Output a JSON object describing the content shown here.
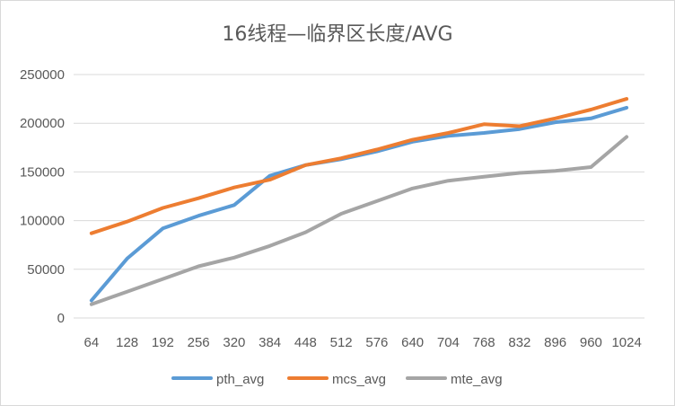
{
  "chart_data": {
    "type": "line",
    "title": "16线程—临界区长度/AVG",
    "xlabel": "",
    "ylabel": "",
    "categories": [
      "64",
      "128",
      "192",
      "256",
      "320",
      "384",
      "448",
      "512",
      "576",
      "640",
      "704",
      "768",
      "832",
      "896",
      "960",
      "1024"
    ],
    "ylim": [
      0,
      250000
    ],
    "yticks": [
      "0",
      "50000",
      "100000",
      "150000",
      "200000",
      "250000"
    ],
    "grid": "horizontal",
    "legend": "bottom",
    "series": [
      {
        "name": "pth_avg",
        "color": "#5b9bd5",
        "values": [
          18000,
          61000,
          92000,
          105000,
          116000,
          146000,
          157000,
          163000,
          171000,
          181000,
          187000,
          190000,
          194000,
          201000,
          205000,
          216000
        ]
      },
      {
        "name": "mcs_avg",
        "color": "#ed7d31",
        "values": [
          87000,
          99000,
          113000,
          123000,
          134000,
          142000,
          157000,
          164000,
          173000,
          183000,
          190000,
          199000,
          197000,
          205000,
          214000,
          225000
        ]
      },
      {
        "name": "mte_avg",
        "color": "#a5a5a5",
        "values": [
          14000,
          27000,
          40000,
          53000,
          62000,
          74000,
          88000,
          107000,
          120000,
          133000,
          141000,
          145000,
          149000,
          151000,
          155000,
          186000
        ]
      }
    ]
  }
}
